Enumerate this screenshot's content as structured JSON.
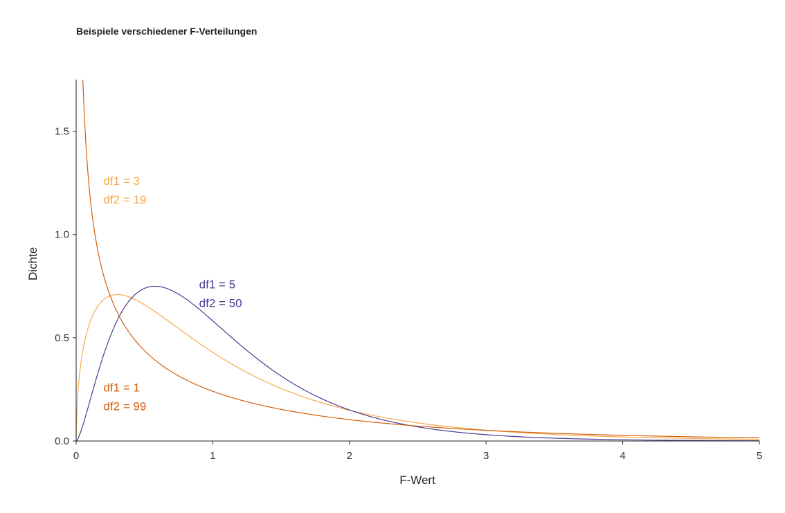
{
  "chart_data": {
    "type": "line",
    "title": "Beispiele verschiedener F-Verteilungen",
    "xlabel": "F-Wert",
    "ylabel": "Dichte",
    "xlim": [
      0,
      5
    ],
    "ylim": [
      0,
      1.75
    ],
    "grid": false,
    "x_ticks": [
      0,
      1,
      2,
      3,
      4,
      5
    ],
    "x_tick_labels": [
      "0",
      "1",
      "2",
      "3",
      "4",
      "5"
    ],
    "y_ticks": [
      0,
      0.5,
      1,
      1.5
    ],
    "y_tick_labels": [
      "0.0",
      "0.5",
      "1.0",
      "1.5"
    ],
    "series": [
      {
        "label_lines": [
          "df1 = 3",
          "df2 = 19"
        ],
        "df1": 3,
        "df2": 19,
        "color": "#F5A94A",
        "label_anchor": [
          0.2,
          1.24
        ]
      },
      {
        "label_lines": [
          "df1 = 5",
          "df2 = 50"
        ],
        "df1": 5,
        "df2": 50,
        "color": "#4B3A8F",
        "label_anchor": [
          0.9,
          0.74
        ]
      },
      {
        "label_lines": [
          "df1 = 1",
          "df2 = 99"
        ],
        "df1": 1,
        "df2": 99,
        "color": "#D45F0A",
        "label_anchor": [
          0.2,
          0.24
        ]
      }
    ]
  }
}
